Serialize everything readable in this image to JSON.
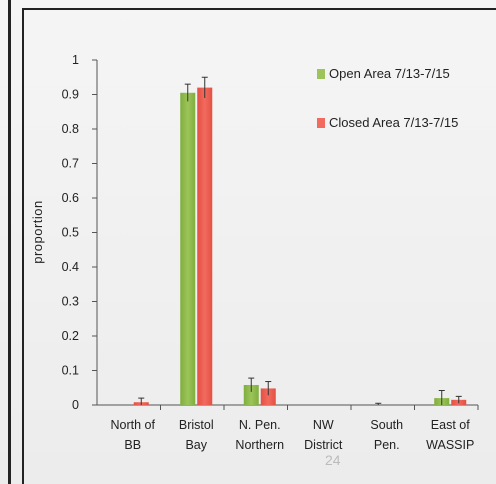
{
  "chart_data": {
    "type": "bar",
    "ylabel": "proportion",
    "xlabel": "",
    "title": "",
    "ylim": [
      0,
      1
    ],
    "yticks": [
      0,
      0.1,
      0.2,
      0.3,
      0.4,
      0.5,
      0.6,
      0.7,
      0.8,
      0.9,
      1
    ],
    "ytick_labels": [
      "0",
      "0.1",
      "0.2",
      "0.3",
      "0.4",
      "0.5",
      "0.6",
      "0.7",
      "0.8",
      "0.9",
      "1"
    ],
    "grid": false,
    "legend_position": "top-right",
    "categories": [
      [
        "North of",
        "BB"
      ],
      [
        "Bristol",
        "Bay"
      ],
      [
        "N. Pen.",
        "Northern"
      ],
      [
        "NW",
        "District"
      ],
      [
        "South",
        "Pen."
      ],
      [
        "East of",
        "WASSIP"
      ]
    ],
    "series": [
      {
        "name": "Open Area 7/13-7/15",
        "color": "#9cc45a",
        "values": [
          0.0,
          0.905,
          0.058,
          0.0,
          0.0,
          0.02
        ],
        "errors": [
          0.0,
          0.025,
          0.02,
          0.0,
          0.005,
          0.022
        ]
      },
      {
        "name": "Closed Area 7/13-7/15",
        "color": "#f26b5e",
        "values": [
          0.008,
          0.92,
          0.048,
          0.0,
          0.0,
          0.015
        ],
        "errors": [
          0.012,
          0.03,
          0.02,
          0.0,
          0.0,
          0.01
        ]
      }
    ]
  },
  "page_number": "24"
}
